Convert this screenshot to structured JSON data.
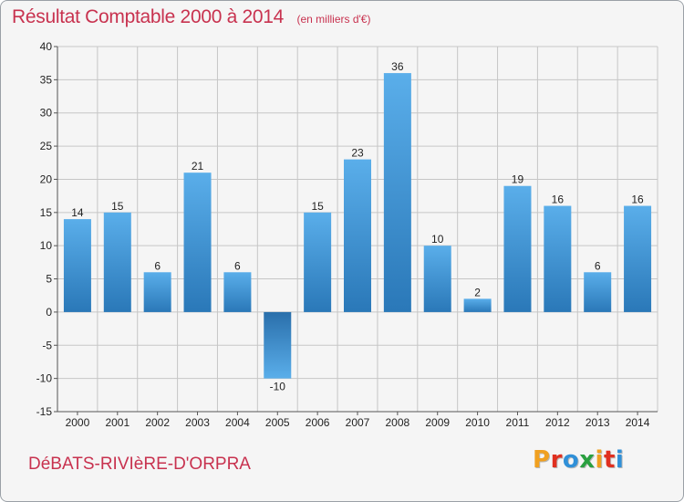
{
  "header": {
    "title": "Résultat Comptable 2000 à 2014",
    "subtitle": "(en milliers d'€)"
  },
  "footer": {
    "municipality": "DéBATS-RIVIèRE-D'ORPRA",
    "logo": "Proxiti"
  },
  "colors": {
    "title": "#c8324f",
    "bar_top": "#5aaeea",
    "bar_bottom": "#2a78b8",
    "negative_bar_top": "#2a6fab",
    "negative_bar_bottom": "#5aaeea",
    "grid": "#c6c6c6",
    "plot_background": "#f5f5f5",
    "logo_letters": [
      "#f0a020",
      "#e03020",
      "#3090d8",
      "#2aa040",
      "#f0a020",
      "#e03020",
      "#3090d8"
    ]
  },
  "chart_data": {
    "type": "bar",
    "title": "Résultat Comptable 2000 à 2014",
    "subtitle": "(en milliers d'€)",
    "categories": [
      "2000",
      "2001",
      "2002",
      "2003",
      "2004",
      "2005",
      "2006",
      "2007",
      "2008",
      "2009",
      "2010",
      "2011",
      "2012",
      "2013",
      "2014"
    ],
    "values": [
      14,
      15,
      6,
      21,
      6,
      -10,
      15,
      23,
      36,
      10,
      2,
      19,
      16,
      6,
      16
    ],
    "data_labels": [
      "14",
      "15",
      "6",
      "21",
      "6",
      "-10",
      "15",
      "23",
      "36",
      "10",
      "2",
      "19",
      "16",
      "6",
      "16"
    ],
    "ylim": [
      -15,
      40
    ],
    "yticks": [
      -15,
      -10,
      -5,
      0,
      5,
      10,
      15,
      20,
      25,
      30,
      35,
      40
    ],
    "ytick_labels": [
      "-15",
      "-10",
      "-5",
      "0",
      "5",
      "10",
      "15",
      "20",
      "25",
      "30",
      "35",
      "40"
    ],
    "xlabel": "",
    "ylabel": "",
    "grid": true,
    "legend": "none"
  }
}
